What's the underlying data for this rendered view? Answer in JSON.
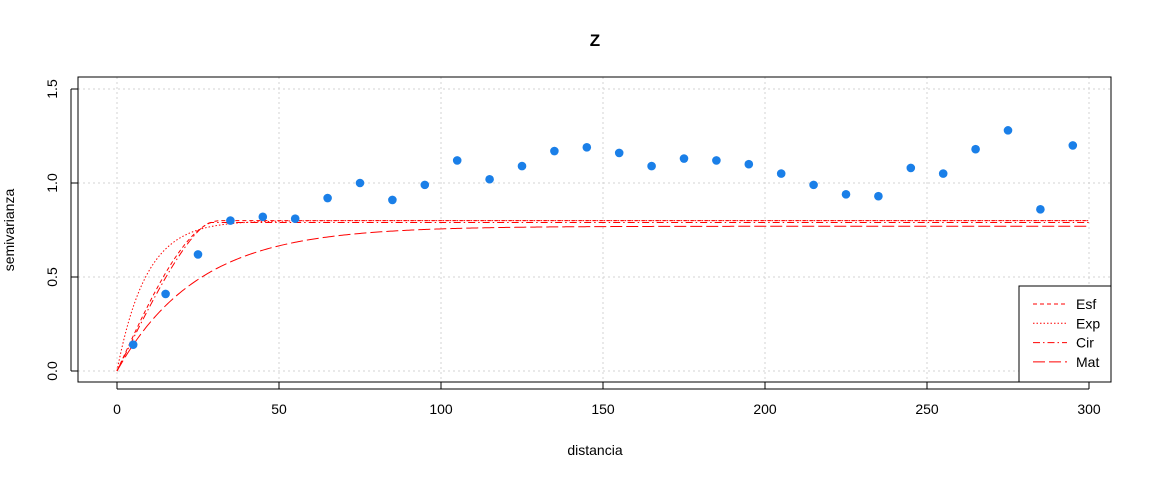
{
  "chart_data": {
    "type": "scatter",
    "title": "Z",
    "xlabel": "distancia",
    "ylabel": "semivarianza",
    "xlim": [
      0,
      300
    ],
    "ylim": [
      0,
      1.5
    ],
    "x_ticks": [
      "0",
      "50",
      "100",
      "150",
      "200",
      "250",
      "300"
    ],
    "y_ticks": [
      "0.0",
      "0.5",
      "1.0",
      "1.5"
    ],
    "grid": true,
    "legend_position": "bottom-right",
    "colors": {
      "points": "#1a7fe8",
      "models": "#ff0000",
      "grid": "#d3d3d3"
    },
    "points": {
      "x": [
        5,
        15,
        25,
        35,
        45,
        55,
        65,
        75,
        85,
        95,
        105,
        115,
        125,
        135,
        145,
        155,
        165,
        175,
        185,
        195,
        205,
        215,
        225,
        235,
        245,
        255,
        265,
        275,
        285,
        295
      ],
      "y": [
        0.14,
        0.41,
        0.62,
        0.8,
        0.82,
        0.81,
        0.92,
        1.0,
        0.91,
        0.99,
        1.12,
        1.02,
        1.09,
        1.17,
        1.19,
        1.16,
        1.09,
        1.13,
        1.12,
        1.1,
        1.05,
        0.99,
        0.94,
        0.93,
        1.08,
        1.05,
        1.18,
        1.28,
        0.86,
        1.2
      ]
    },
    "series": [
      {
        "name": "Esf",
        "model": "spherical",
        "nugget": 0,
        "sill": 0.8,
        "range": 32,
        "dash": "4,3"
      },
      {
        "name": "Exp",
        "model": "exponential",
        "nugget": 0,
        "sill": 0.8,
        "range": 9,
        "dash": "1.5,2"
      },
      {
        "name": "Cir",
        "model": "circular",
        "nugget": 0,
        "sill": 0.79,
        "range": 29,
        "dash": "7,3,1.5,3"
      },
      {
        "name": "Mat",
        "model": "exponential",
        "nugget": 0,
        "sill": 0.77,
        "range": 25,
        "dash": "12,4"
      }
    ]
  }
}
